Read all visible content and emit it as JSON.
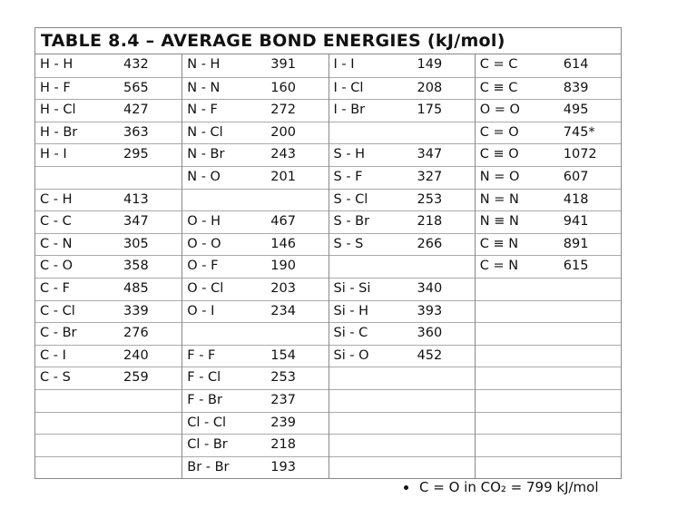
{
  "title": "TABLE 8.4 – AVERAGE BOND ENERGIES (kJ/mol)",
  "columns": [
    [
      [
        "H - H",
        "432"
      ],
      [
        "H - F",
        "565"
      ],
      [
        "H - Cl",
        "427"
      ],
      [
        "H - Br",
        "363"
      ],
      [
        "H - I",
        "295"
      ],
      [
        "",
        ""
      ],
      [
        "C - H",
        "413"
      ],
      [
        "C - C",
        "347"
      ],
      [
        "C - N",
        "305"
      ],
      [
        "C - O",
        "358"
      ],
      [
        "C - F",
        "485"
      ],
      [
        "C - Cl",
        "339"
      ],
      [
        "C - Br",
        "276"
      ],
      [
        "C - I",
        "240"
      ],
      [
        "C - S",
        "259"
      ],
      [
        "",
        ""
      ],
      [
        "",
        ""
      ],
      [
        "",
        ""
      ],
      [
        "",
        ""
      ]
    ],
    [
      [
        "N - H",
        "391"
      ],
      [
        "N - N",
        "160"
      ],
      [
        "N - F",
        "272"
      ],
      [
        "N - Cl",
        "200"
      ],
      [
        "N - Br",
        "243"
      ],
      [
        "N - O",
        "201"
      ],
      [
        "",
        ""
      ],
      [
        "O - H",
        "467"
      ],
      [
        "O - O",
        "146"
      ],
      [
        "O - F",
        "190"
      ],
      [
        "O - Cl",
        "203"
      ],
      [
        "O - I",
        "234"
      ],
      [
        "",
        ""
      ],
      [
        "F - F",
        "154"
      ],
      [
        "F - Cl",
        "253"
      ],
      [
        "F - Br",
        "237"
      ],
      [
        "Cl - Cl",
        "239"
      ],
      [
        "Cl - Br",
        "218"
      ],
      [
        "Br - Br",
        "193"
      ]
    ],
    [
      [
        "I - I",
        "149"
      ],
      [
        "I - Cl",
        "208"
      ],
      [
        "I - Br",
        "175"
      ],
      [
        "",
        ""
      ],
      [
        "S - H",
        "347"
      ],
      [
        "S - F",
        "327"
      ],
      [
        "S - Cl",
        "253"
      ],
      [
        "S - Br",
        "218"
      ],
      [
        "S - S",
        "266"
      ],
      [
        "",
        ""
      ],
      [
        "Si - Si",
        "340"
      ],
      [
        "Si - H",
        "393"
      ],
      [
        "Si - C",
        "360"
      ],
      [
        "Si - O",
        "452"
      ],
      [
        "",
        ""
      ],
      [
        "",
        ""
      ],
      [
        "",
        ""
      ],
      [
        "",
        ""
      ],
      [
        "",
        ""
      ]
    ],
    [
      [
        "C = C",
        "614"
      ],
      [
        "C ≡ C",
        "839"
      ],
      [
        "O = O",
        "495"
      ],
      [
        "C = O",
        "745*"
      ],
      [
        "C ≡ O",
        "1072"
      ],
      [
        "N = O",
        "607"
      ],
      [
        "N = N",
        "418"
      ],
      [
        "N ≡ N",
        "941"
      ],
      [
        "C ≡ N",
        "891"
      ],
      [
        "C = N",
        "615"
      ],
      [
        "",
        ""
      ],
      [
        "",
        ""
      ],
      [
        "",
        ""
      ],
      [
        "",
        ""
      ],
      [
        "",
        ""
      ],
      [
        "",
        ""
      ],
      [
        "",
        ""
      ],
      [
        "",
        ""
      ],
      [
        "",
        ""
      ]
    ]
  ],
  "footnote": "C = O in CO₂ = 799 kJ/mol"
}
